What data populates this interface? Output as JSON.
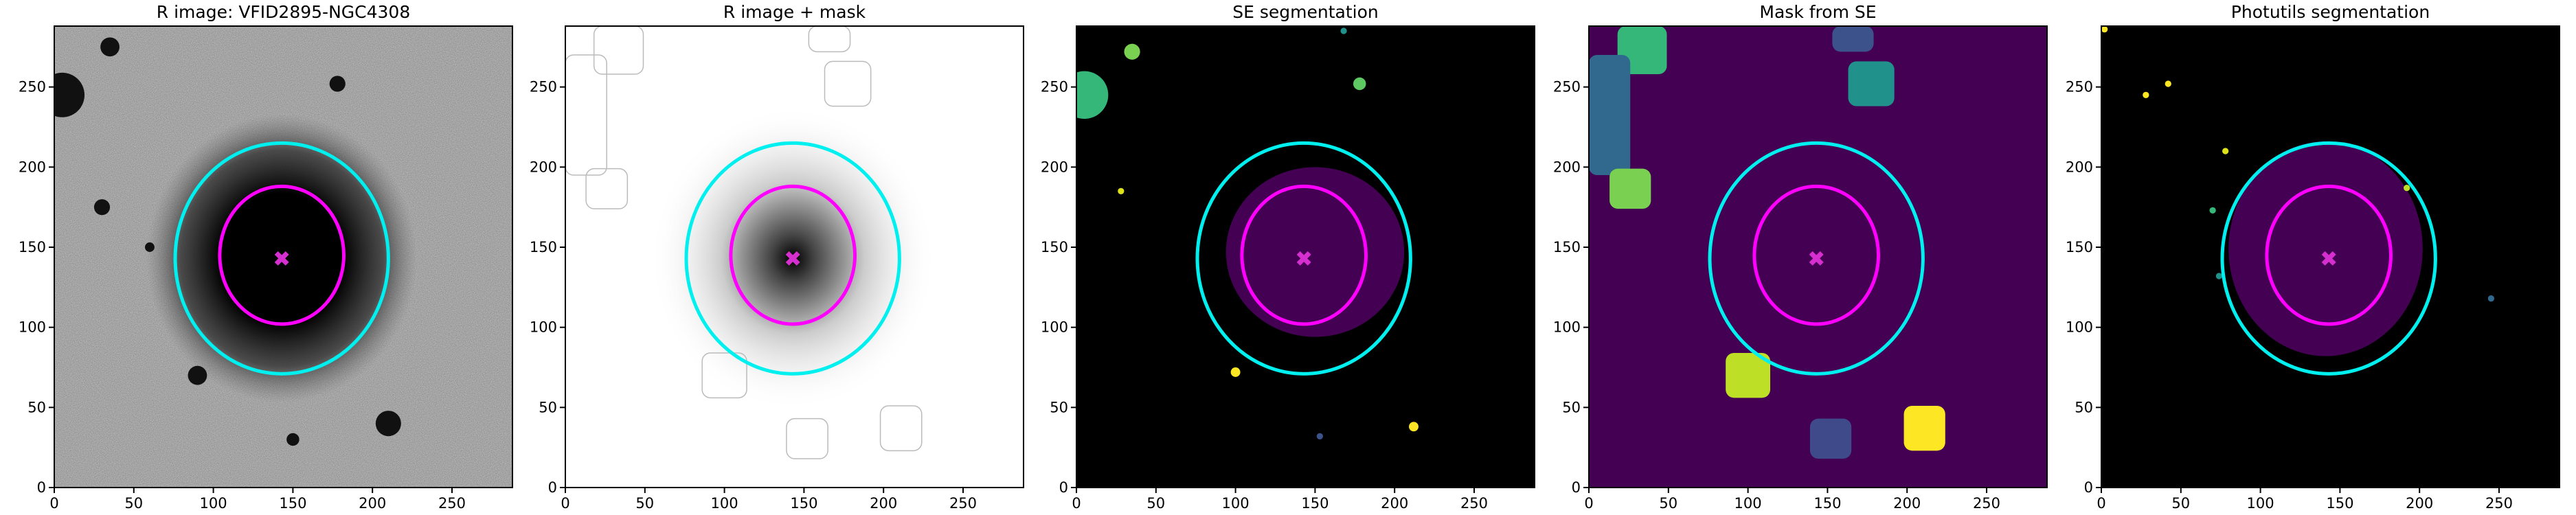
{
  "chart_data": [
    {
      "type": "image",
      "title": "R image: VFID2895-NGC4308",
      "background": "#8c8c8c",
      "xlim": [
        0,
        288
      ],
      "ylim": [
        0,
        288
      ],
      "xticks": [
        0,
        50,
        100,
        150,
        200,
        250
      ],
      "yticks": [
        0,
        50,
        100,
        150,
        200,
        250
      ],
      "ellipses": [
        {
          "x": 143,
          "y": 143,
          "rx": 67,
          "ry": 72,
          "color": "#00f0f0"
        },
        {
          "x": 143,
          "y": 145,
          "rx": 39,
          "ry": 43,
          "color": "#ff00ff"
        }
      ],
      "marker": {
        "x": 143,
        "y": 143,
        "color": "#d62fd0"
      }
    },
    {
      "type": "image",
      "title": "R image + mask",
      "background": "#ffffff",
      "xlim": [
        0,
        288
      ],
      "ylim": [
        0,
        288
      ],
      "xticks": [
        0,
        50,
        100,
        150,
        200,
        250
      ],
      "yticks": [
        0,
        50,
        100,
        150,
        200,
        250
      ],
      "ellipses": [
        {
          "x": 143,
          "y": 143,
          "rx": 67,
          "ry": 72,
          "color": "#00f0f0"
        },
        {
          "x": 143,
          "y": 145,
          "rx": 39,
          "ry": 43,
          "color": "#ff00ff"
        }
      ],
      "marker": {
        "x": 143,
        "y": 143,
        "color": "#d62fd0"
      }
    },
    {
      "type": "image",
      "title": "SE segmentation",
      "background": "#000000",
      "xlim": [
        0,
        288
      ],
      "ylim": [
        0,
        288
      ],
      "xticks": [
        0,
        50,
        100,
        150,
        200,
        250
      ],
      "yticks": [
        0,
        50,
        100,
        150,
        200,
        250
      ],
      "ellipses": [
        {
          "x": 143,
          "y": 143,
          "rx": 67,
          "ry": 72,
          "color": "#00f0f0"
        },
        {
          "x": 143,
          "y": 145,
          "rx": 39,
          "ry": 43,
          "color": "#ff00ff"
        }
      ],
      "marker": {
        "x": 143,
        "y": 143,
        "color": "#d62fd0"
      }
    },
    {
      "type": "image",
      "title": "Mask from SE",
      "background": "#440154",
      "xlim": [
        0,
        288
      ],
      "ylim": [
        0,
        288
      ],
      "xticks": [
        0,
        50,
        100,
        150,
        200,
        250
      ],
      "yticks": [
        0,
        50,
        100,
        150,
        200,
        250
      ],
      "ellipses": [
        {
          "x": 143,
          "y": 143,
          "rx": 67,
          "ry": 72,
          "color": "#00f0f0"
        },
        {
          "x": 143,
          "y": 145,
          "rx": 39,
          "ry": 43,
          "color": "#ff00ff"
        }
      ],
      "marker": {
        "x": 143,
        "y": 143,
        "color": "#d62fd0"
      }
    },
    {
      "type": "image",
      "title": "Photutils segmentation",
      "background": "#000000",
      "xlim": [
        0,
        288
      ],
      "ylim": [
        0,
        288
      ],
      "xticks": [
        0,
        50,
        100,
        150,
        200,
        250
      ],
      "yticks": [
        0,
        50,
        100,
        150,
        200,
        250
      ],
      "ellipses": [
        {
          "x": 143,
          "y": 143,
          "rx": 67,
          "ry": 72,
          "color": "#00f0f0"
        },
        {
          "x": 143,
          "y": 145,
          "rx": 39,
          "ry": 43,
          "color": "#ff00ff"
        }
      ],
      "marker": {
        "x": 143,
        "y": 143,
        "color": "#d62fd0"
      }
    }
  ]
}
